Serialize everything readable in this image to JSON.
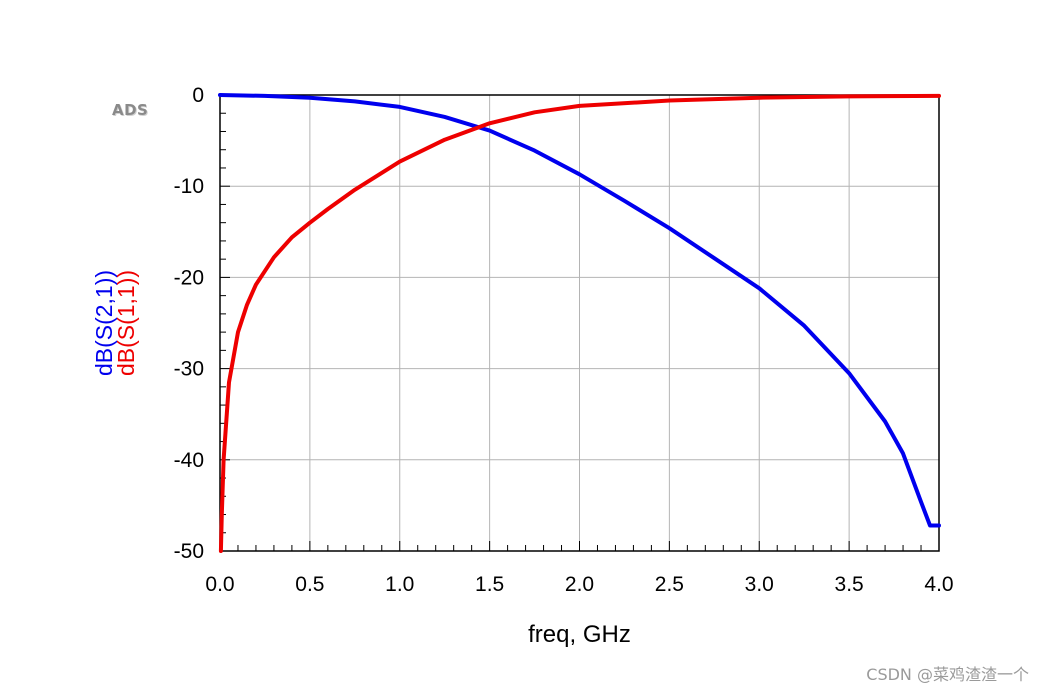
{
  "watermark": "CSDN @菜鸡渣渣一个",
  "logo_text": "ADS",
  "chart_data": {
    "type": "line",
    "title": "",
    "xlabel": "freq, GHz",
    "ylabel_parts": [
      {
        "text": "dB(S(2,1))",
        "color": "#0000ee"
      },
      {
        "text": "dB(S(1,1))",
        "color": "#ee0000"
      }
    ],
    "xlim": [
      0,
      4
    ],
    "ylim": [
      -50,
      0
    ],
    "x_ticks": [
      "0.0",
      "0.5",
      "1.0",
      "1.5",
      "2.0",
      "2.5",
      "3.0",
      "3.5",
      "4.0"
    ],
    "x_tick_values": [
      0,
      0.5,
      1.0,
      1.5,
      2.0,
      2.5,
      3.0,
      3.5,
      4.0
    ],
    "y_ticks": [
      "0",
      "-10",
      "-20",
      "-30",
      "-40",
      "-50"
    ],
    "y_tick_values": [
      0,
      -10,
      -20,
      -30,
      -40,
      -50
    ],
    "grid": true,
    "series": [
      {
        "name": "dB(S(2,1))",
        "color": "#0000ee",
        "x": [
          0,
          0.25,
          0.5,
          0.75,
          1.0,
          1.25,
          1.5,
          1.75,
          2.0,
          2.25,
          2.5,
          2.75,
          3.0,
          3.25,
          3.5,
          3.7,
          3.8,
          3.9,
          3.95,
          4.0
        ],
        "y": [
          0,
          -0.1,
          -0.3,
          -0.7,
          -1.3,
          -2.4,
          -3.9,
          -6.1,
          -8.7,
          -11.6,
          -14.6,
          -17.9,
          -21.2,
          -25.3,
          -30.5,
          -35.8,
          -39.3,
          -44.6,
          -47.2,
          -47.2
        ]
      },
      {
        "name": "dB(S(1,1))",
        "color": "#ee0000",
        "x": [
          0.005,
          0.01,
          0.02,
          0.05,
          0.1,
          0.15,
          0.2,
          0.3,
          0.4,
          0.5,
          0.6,
          0.75,
          1.0,
          1.25,
          1.5,
          1.75,
          2.0,
          2.5,
          3.0,
          3.5,
          4.0
        ],
        "y": [
          -50,
          -46,
          -40,
          -31.5,
          -26,
          -23,
          -20.8,
          -17.8,
          -15.6,
          -14.0,
          -12.5,
          -10.4,
          -7.3,
          -4.9,
          -3.1,
          -1.9,
          -1.2,
          -0.6,
          -0.3,
          -0.15,
          -0.1
        ]
      }
    ]
  }
}
